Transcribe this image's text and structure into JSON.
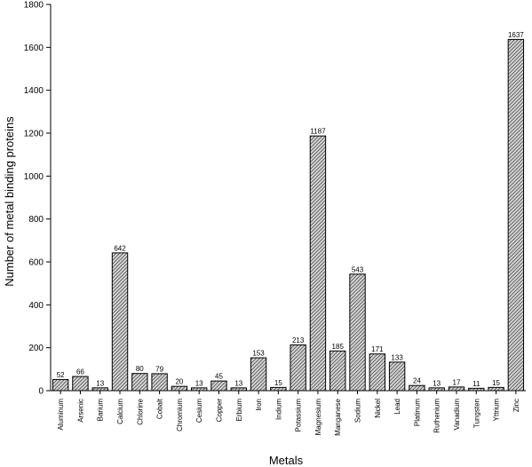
{
  "chart_data": {
    "type": "bar",
    "title": "",
    "xlabel": "Metals",
    "ylabel": "Number of metal binding proteins",
    "ylim": [
      0,
      1800
    ],
    "yticks": [
      0,
      200,
      400,
      600,
      800,
      1000,
      1200,
      1400,
      1600,
      1800
    ],
    "categories": [
      "Aluminum",
      "Arsenic",
      "Barium",
      "Calcium",
      "Chlorine",
      "Cobalt",
      "Chromium",
      "Cesium",
      "Copper",
      "Erbium",
      "Iron",
      "Indium",
      "Potassium",
      "Magnesium",
      "Manganese",
      "Sodium",
      "Nickel",
      "Lead",
      "Platinum",
      "Ruthenium",
      "Vanadium",
      "Tungsten",
      "Yttrium",
      "Zinc"
    ],
    "values": [
      52,
      66,
      13,
      642,
      80,
      79,
      20,
      13,
      45,
      13,
      153,
      15,
      213,
      1187,
      185,
      543,
      171,
      133,
      24,
      13,
      17,
      11,
      15,
      1637
    ],
    "data_labels": [
      "52",
      "66",
      "13",
      "642",
      "80",
      "79",
      "20",
      "13",
      "45",
      "13",
      "153",
      "15",
      "213",
      "1187",
      "185",
      "543",
      "171",
      "133",
      "24",
      "13",
      "17",
      "11",
      "15",
      "1637"
    ],
    "bar_fill": "hatched",
    "bar_color": "#d3d3d3",
    "hatch_color": "#555555",
    "grid": false,
    "legend": "none"
  }
}
